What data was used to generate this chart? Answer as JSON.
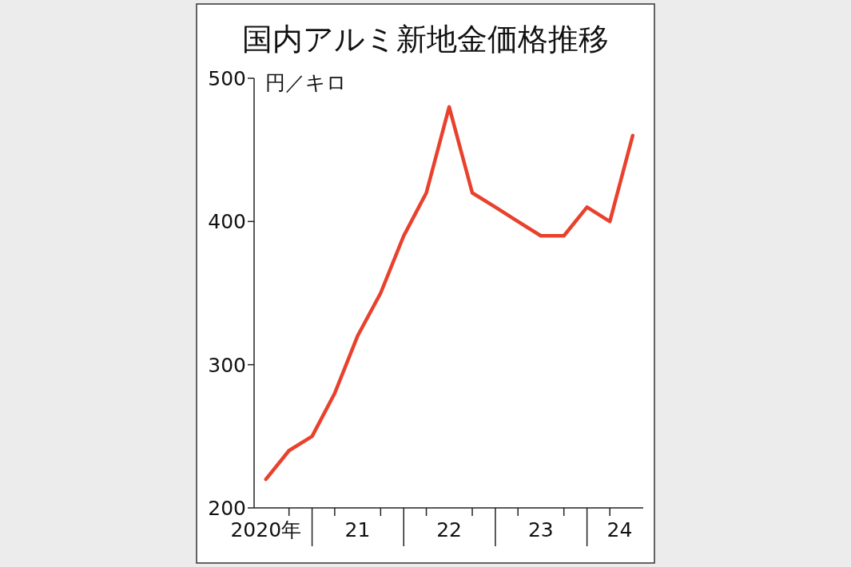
{
  "chart_data": {
    "type": "line",
    "title": "国内アルミ新地金価格推移",
    "ylabel": "円／キロ",
    "x": [
      "2020-07",
      "2020-10",
      "2021-01",
      "2021-04",
      "2021-07",
      "2021-10",
      "2022-01",
      "2022-04",
      "2022-07",
      "2022-10",
      "2023-01",
      "2023-04",
      "2023-07",
      "2023-10",
      "2024-01",
      "2024-04",
      "2024-07"
    ],
    "series": [
      {
        "color": "#e8412c",
        "values": [
          220,
          240,
          250,
          280,
          320,
          350,
          390,
          420,
          480,
          420,
          410,
          400,
          390,
          390,
          410,
          400,
          460
        ]
      }
    ],
    "xlim": [
      "2020-05-15",
      "2024-08-12"
    ],
    "xticks": [
      {
        "value": "2020-07",
        "label": "2020年"
      },
      {
        "value": "2020-10",
        "label": null
      },
      {
        "value": "2021-01",
        "label": null
      },
      {
        "value": "2021-04",
        "label": null
      },
      {
        "value": "2021-07",
        "label": "21"
      },
      {
        "value": "2021-10",
        "label": null
      },
      {
        "value": "2022-01",
        "label": null
      },
      {
        "value": "2022-04",
        "label": null
      },
      {
        "value": "2022-07",
        "label": "22"
      },
      {
        "value": "2022-10",
        "label": null
      },
      {
        "value": "2023-01",
        "label": null
      },
      {
        "value": "2023-04",
        "label": null
      },
      {
        "value": "2023-07",
        "label": "23"
      },
      {
        "value": "2023-10",
        "label": null
      },
      {
        "value": "2024-01",
        "label": null
      },
      {
        "value": "2024-04",
        "label": null
      },
      {
        "value": "2024-05-10",
        "label": "24"
      }
    ],
    "ylim": [
      200,
      500
    ],
    "yticks": [
      200,
      300,
      400,
      500
    ],
    "grid": false,
    "marker": "none",
    "line_style": "solid"
  }
}
